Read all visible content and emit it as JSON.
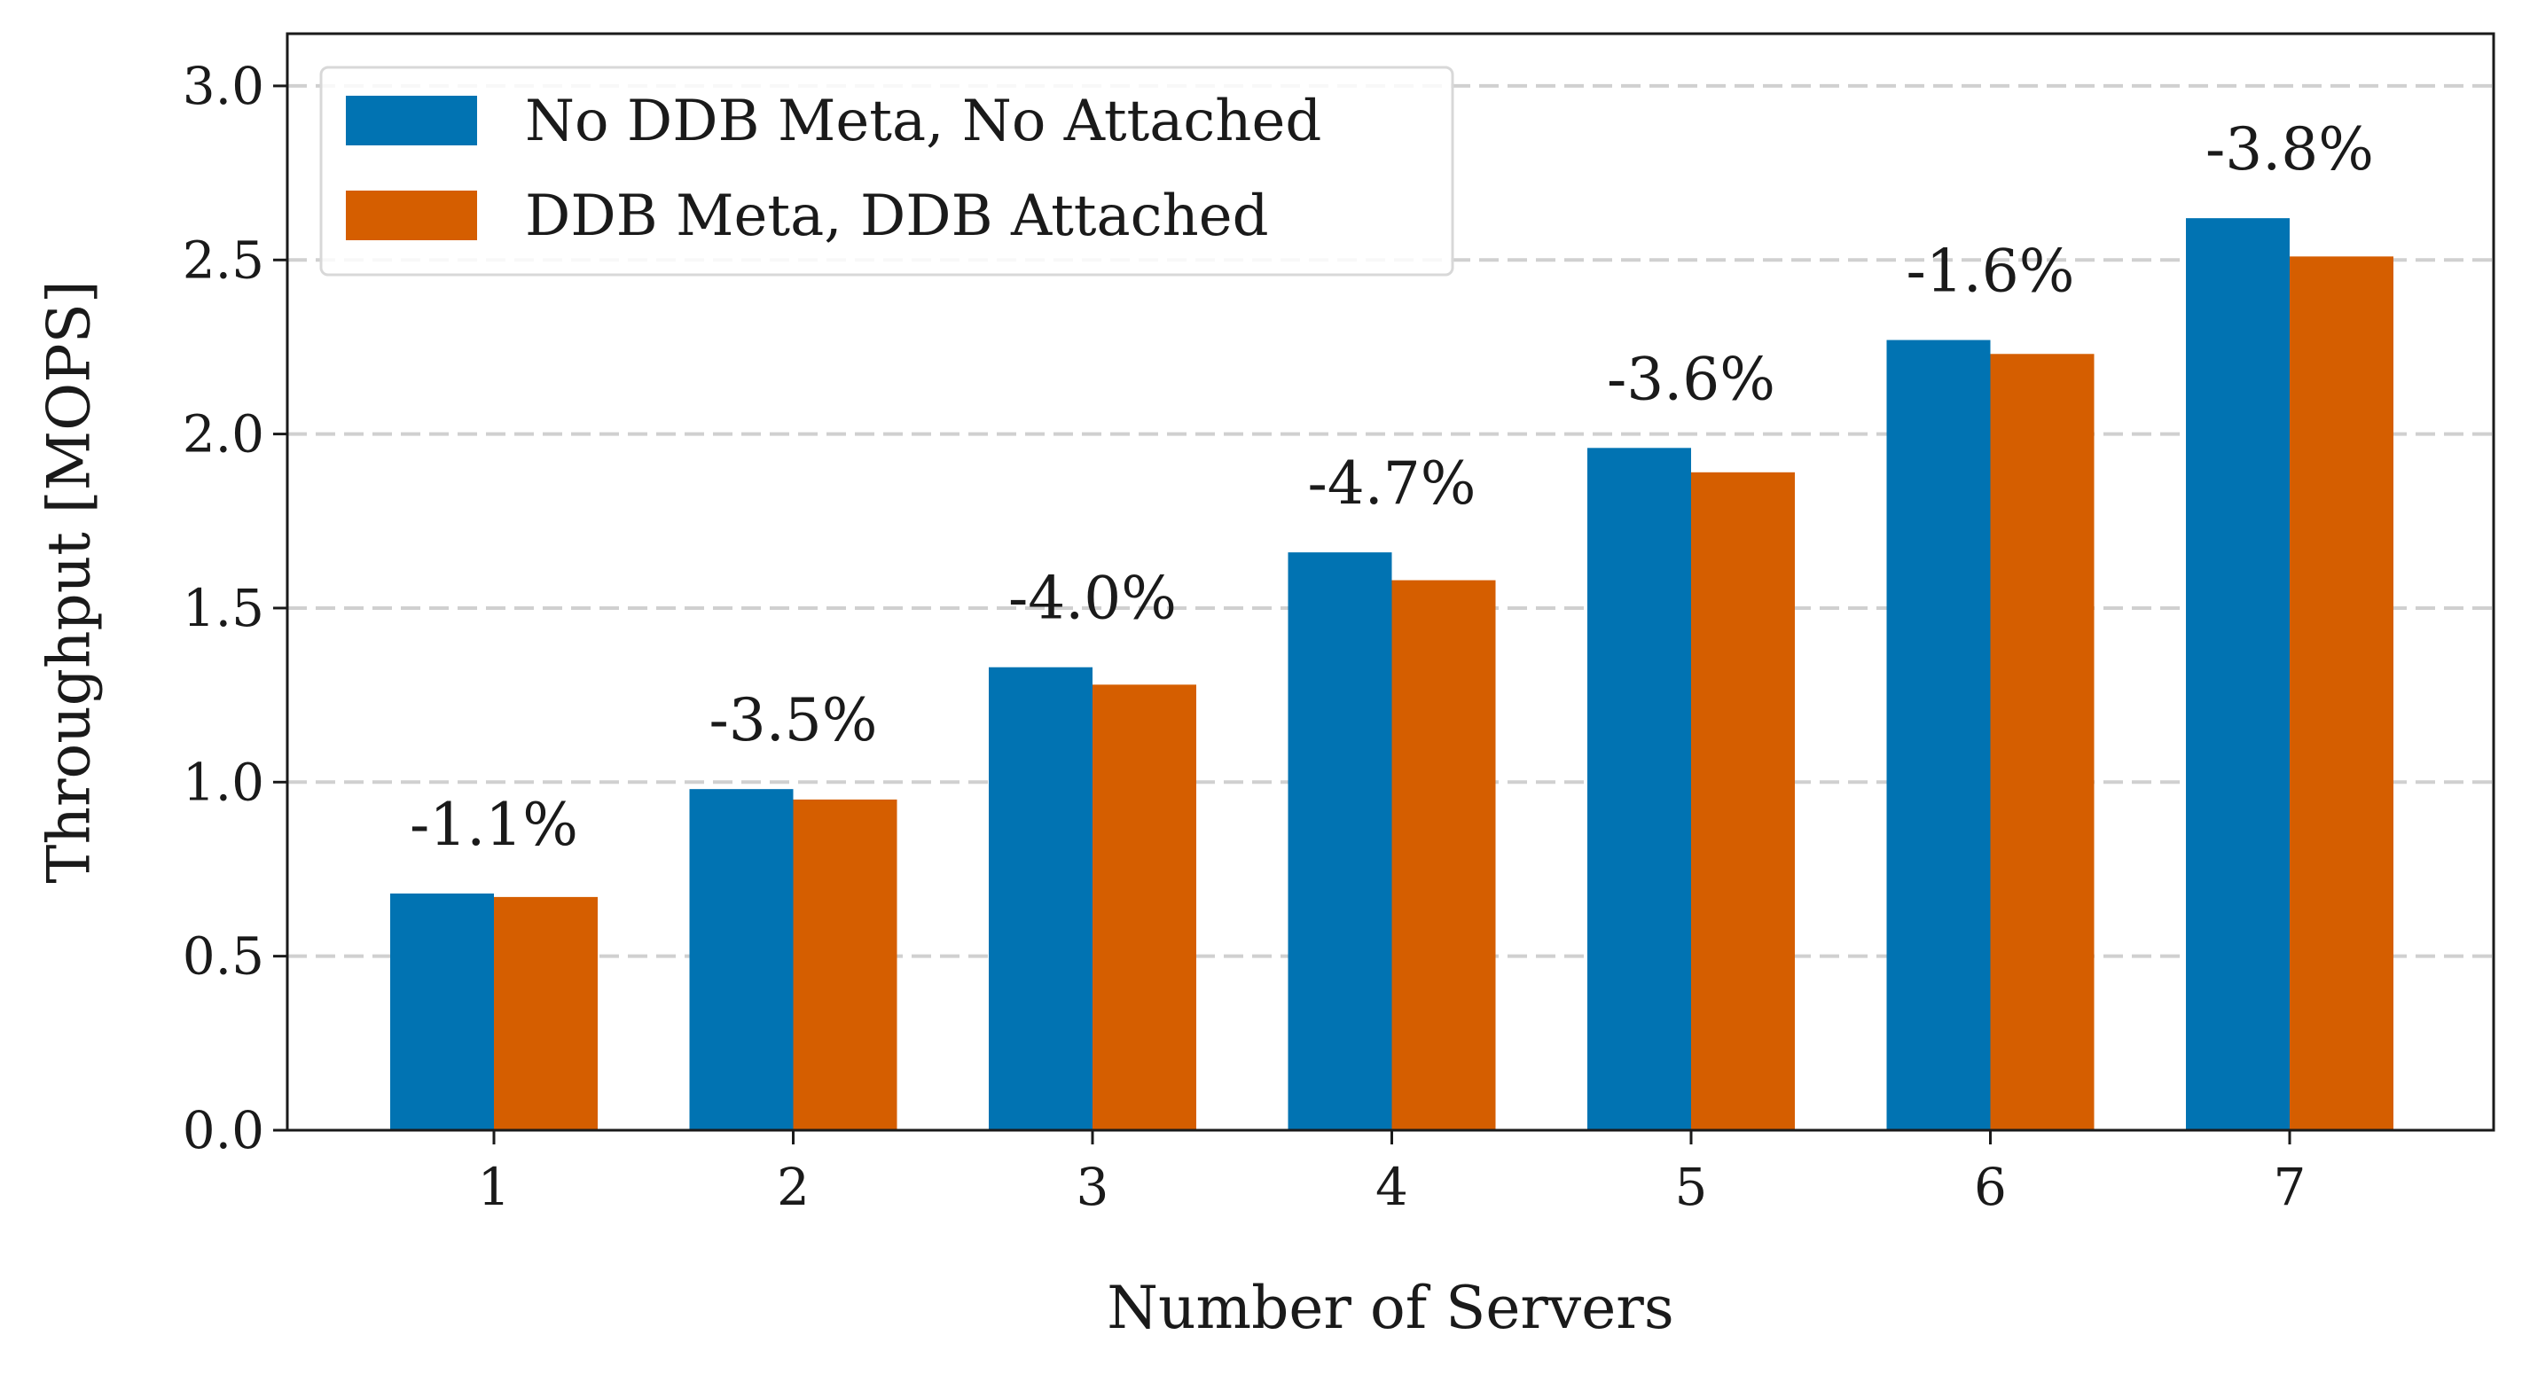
{
  "chart_data": {
    "type": "bar",
    "title": "",
    "xlabel": "Number of Servers",
    "ylabel": "Throughput [MOPS]",
    "categories": [
      "1",
      "2",
      "3",
      "4",
      "5",
      "6",
      "7"
    ],
    "series": [
      {
        "name": "No DDB Meta, No Attached",
        "color": "#0173b2",
        "values": [
          0.68,
          0.98,
          1.33,
          1.66,
          1.96,
          2.27,
          2.62
        ]
      },
      {
        "name": "DDB Meta, DDB Attached",
        "color": "#d55e00",
        "values": [
          0.67,
          0.95,
          1.28,
          1.58,
          1.89,
          2.23,
          2.51
        ]
      }
    ],
    "annotations": [
      "-1.1%",
      "-3.5%",
      "-4.0%",
      "-4.7%",
      "-3.6%",
      "-1.6%",
      "-3.8%"
    ],
    "ylim": [
      0,
      3.15
    ],
    "yticks": [
      "0.0",
      "0.5",
      "1.0",
      "1.5",
      "2.0",
      "2.5",
      "3.0"
    ],
    "grid": "horizontal dashed",
    "legend_position": "top-left"
  }
}
